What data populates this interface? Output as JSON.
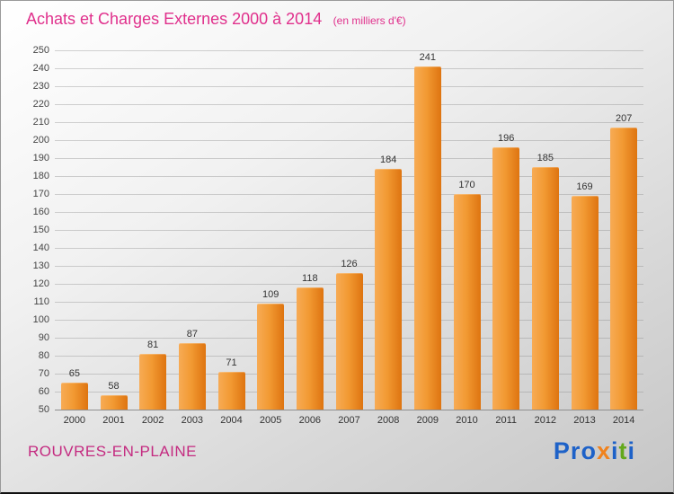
{
  "header": {
    "title": "Achats et Charges Externes 2000 à 2014",
    "subtitle": "(en milliers d'€)"
  },
  "chart_data": {
    "type": "bar",
    "title": "Achats et Charges Externes 2000 à 2014",
    "subtitle": "(en milliers d'€)",
    "categories": [
      "2000",
      "2001",
      "2002",
      "2003",
      "2004",
      "2005",
      "2006",
      "2007",
      "2008",
      "2009",
      "2010",
      "2011",
      "2012",
      "2013",
      "2014"
    ],
    "values": [
      65,
      58,
      81,
      87,
      71,
      109,
      118,
      126,
      184,
      241,
      170,
      196,
      185,
      169,
      207
    ],
    "xlabel": "",
    "ylabel": "",
    "ylim": [
      50,
      250
    ],
    "ytick_step": 10,
    "grid": true,
    "legend": false,
    "value_labels": true,
    "bar_color_light": "#f7ab55",
    "bar_color_dark": "#de7410"
  },
  "footer": {
    "location": "ROUVRES-EN-PLAINE",
    "logo": {
      "letters": [
        {
          "char": "P",
          "color": "#1e62c8"
        },
        {
          "char": "r",
          "color": "#1e62c8"
        },
        {
          "char": "o",
          "color": "#1e62c8"
        },
        {
          "char": "x",
          "color": "#f0821e"
        },
        {
          "char": "i",
          "color": "#1e62c8"
        },
        {
          "char": "t",
          "color": "#63a81c"
        },
        {
          "char": "i",
          "color": "#1e62c8"
        }
      ]
    }
  },
  "colors": {
    "title": "#e0308c",
    "location": "#c42a80",
    "axis_text": "#444444",
    "value_text": "#333333",
    "bar": "#ef8c1f"
  }
}
